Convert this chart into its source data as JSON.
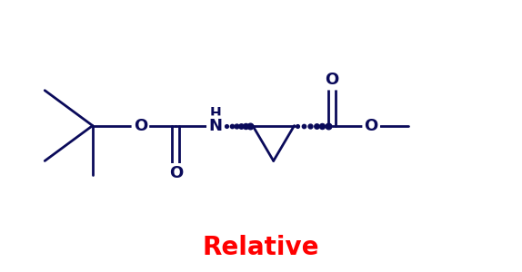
{
  "title": "Relative",
  "title_color": "#ff0000",
  "title_fontsize": 20,
  "bond_color": "#0a0a5a",
  "atom_color": "#0a0a5a",
  "background_color": "#ffffff",
  "line_width": 2.0,
  "figsize": [
    5.74,
    3.0
  ],
  "dpi": 100,
  "xlim": [
    0,
    11.5
  ],
  "ylim": [
    0,
    6.5
  ]
}
